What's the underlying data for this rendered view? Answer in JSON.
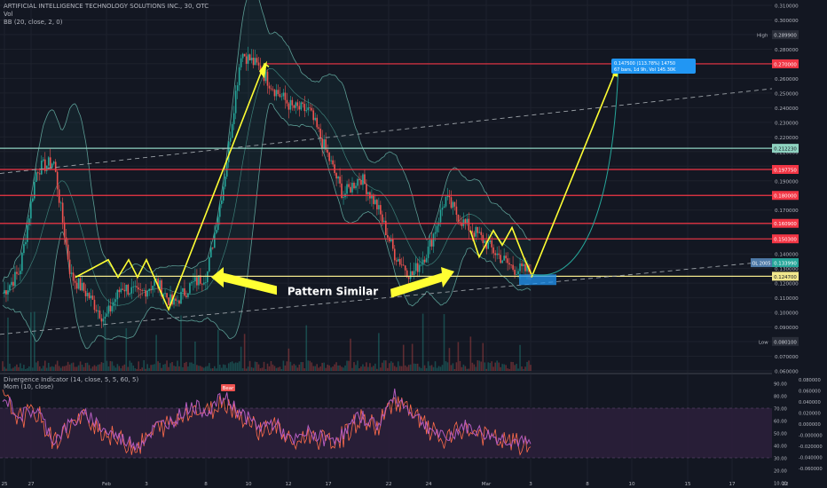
{
  "header": {
    "title": "ARTIFICIAL INTELLIGENCE TECHNOLOGY SOLUTIONS INC., 30, OTC",
    "vol_label": "Vol",
    "bb_label": "BB (20, close, 2, 0)"
  },
  "annotation": {
    "text": "Pattern Similar"
  },
  "chart_data": [
    {
      "type": "candlestick",
      "title": "ARTIFICIAL INTELLIGENCE TECHNOLOGY SOLUTIONS INC., 30, OTC",
      "x_tick_labels": [
        "25",
        "27",
        "Feb",
        "3",
        "8",
        "10",
        "12",
        "17",
        "22",
        "24",
        "Mar",
        "3",
        "8",
        "10",
        "15",
        "17",
        "22"
      ],
      "y_tick_labels": [
        "0.310000",
        "0.300000",
        "0.290000",
        "0.280000",
        "0.270000",
        "0.260000",
        "0.250000",
        "0.240000",
        "0.230000",
        "0.220000",
        "0.210000",
        "0.200000",
        "0.190000",
        "0.180000",
        "0.170000",
        "0.160000",
        "0.150000",
        "0.140000",
        "0.130000",
        "0.120000",
        "0.110000",
        "0.100000",
        "0.090000",
        "0.080000",
        "0.070000",
        "0.060000"
      ],
      "ylim": [
        0.06,
        0.31
      ],
      "price_path_key_points": [
        0.113,
        0.128,
        0.198,
        0.203,
        0.125,
        0.112,
        0.095,
        0.118,
        0.112,
        0.121,
        0.105,
        0.118,
        0.126,
        0.19,
        0.278,
        0.268,
        0.252,
        0.24,
        0.238,
        0.21,
        0.18,
        0.193,
        0.172,
        0.14,
        0.125,
        0.143,
        0.178,
        0.162,
        0.152,
        0.14,
        0.13,
        0.128
      ],
      "high_label": "High",
      "high_value": "0.289900",
      "low_label": "Low",
      "low_value": "0.080100",
      "horizontal_levels": [
        {
          "value": "0.270000",
          "color": "#f23645"
        },
        {
          "value": "0.212230",
          "color": "#8fd3c1"
        },
        {
          "value": "0.197750",
          "color": "#f23645"
        },
        {
          "value": "0.180000",
          "color": "#f23645"
        },
        {
          "value": "0.160900",
          "color": "#f23645"
        },
        {
          "value": "0.150300",
          "color": "#f23645"
        },
        {
          "value": "0.124700",
          "color": "#f0e68c"
        }
      ],
      "current_price_label": "0.133990",
      "current_price_prefix": "OL 2005",
      "projection": {
        "from": 0.124,
        "to": 0.27,
        "box_text_1": "0.147500 (113.78%) 14750",
        "box_text_2": "67 bars, 1d 9h, Vol 145.30K"
      },
      "colors": {
        "up": "#26a69a",
        "down": "#ef5350",
        "pattern": "#ffff33",
        "bands": "#5b9c94"
      }
    },
    {
      "type": "line",
      "title": "Divergence Indicator (14, close, 5, 5, 60, 5)",
      "subtitle": "Mom (10, close)",
      "y_tick_labels_left": [
        "90.00",
        "80.00",
        "70.00",
        "60.00",
        "50.00",
        "40.00",
        "30.00",
        "20.00",
        "10.00"
      ],
      "y_tick_labels_right": [
        "0.080000",
        "0.060000",
        "0.040000",
        "0.020000",
        "0.000000",
        "-0.000000",
        "-0.020000",
        "-0.040000",
        "-0.060000"
      ],
      "ylim": [
        10,
        90
      ],
      "overbought_band": [
        30,
        70
      ],
      "divergence_label": "Bear",
      "rsi_key_points": [
        80,
        64,
        69,
        44,
        58,
        65,
        52,
        45,
        41,
        55,
        60,
        72,
        68,
        79,
        66,
        55,
        58,
        42,
        51,
        44,
        49,
        64,
        56,
        80,
        67,
        55,
        44,
        56,
        51,
        46,
        44,
        40
      ],
      "series": [
        {
          "name": "Divergence Indicator",
          "color": "#b45cbf"
        },
        {
          "name": "Mom",
          "color": "#ff6b4a"
        }
      ]
    }
  ]
}
